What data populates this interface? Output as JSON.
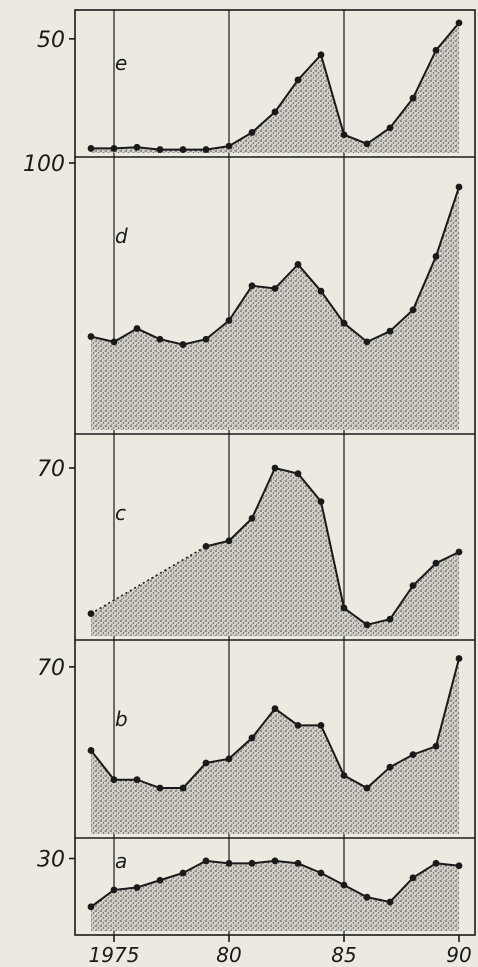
{
  "chart_data": [
    {
      "id": "e",
      "type": "area",
      "panel_label": "e",
      "x": [
        1974,
        1975,
        1976,
        1977,
        1978,
        1979,
        1980,
        1981,
        1982,
        1983,
        1984,
        1985,
        1986,
        1987,
        1988,
        1989,
        1990
      ],
      "values": [
        2,
        2,
        2.5,
        1.5,
        1.5,
        1.5,
        3,
        9,
        18,
        32,
        43,
        8,
        4,
        11,
        24,
        45,
        57
      ],
      "ylim": [
        0,
        60
      ],
      "y_tick_labels": [
        "50"
      ],
      "y_ticks": [
        50
      ],
      "dashed_from_index": null
    },
    {
      "id": "d",
      "type": "area",
      "panel_label": "d",
      "x": [
        1974,
        1975,
        1976,
        1977,
        1978,
        1979,
        1980,
        1981,
        1982,
        1983,
        1984,
        1985,
        1986,
        1987,
        1988,
        1989,
        1990
      ],
      "values": [
        35,
        33,
        38,
        34,
        32,
        34,
        41,
        54,
        53,
        62,
        52,
        40,
        33,
        37,
        45,
        65,
        91
      ],
      "ylim": [
        0,
        100
      ],
      "y_tick_labels": [
        "100"
      ],
      "y_ticks": [
        100
      ],
      "dashed_from_index": null
    },
    {
      "id": "c",
      "type": "area",
      "panel_label": "c",
      "x": [
        1974,
        1979,
        1980,
        1981,
        1982,
        1983,
        1984,
        1985,
        1986,
        1987,
        1988,
        1989,
        1990
      ],
      "values": [
        44,
        56,
        57,
        61,
        70,
        69,
        64,
        45,
        42,
        43,
        49,
        53,
        55
      ],
      "ylim": [
        40,
        75
      ],
      "y_tick_labels": [
        "70"
      ],
      "y_ticks": [
        70
      ],
      "dashed_from_index": 1
    },
    {
      "id": "b",
      "type": "area",
      "panel_label": "b",
      "x": [
        1974,
        1975,
        1976,
        1977,
        1978,
        1979,
        1980,
        1981,
        1982,
        1983,
        1984,
        1985,
        1986,
        1987,
        1988,
        1989,
        1990
      ],
      "values": [
        50,
        43,
        43,
        41,
        41,
        47,
        48,
        53,
        60,
        56,
        56,
        44,
        41,
        46,
        49,
        51,
        72
      ],
      "ylim": [
        30,
        75
      ],
      "y_tick_labels": [
        "70"
      ],
      "y_ticks": [
        70
      ],
      "dashed_from_index": null
    },
    {
      "id": "a",
      "type": "area",
      "panel_label": "a",
      "x": [
        1974,
        1975,
        1976,
        1977,
        1978,
        1979,
        1980,
        1981,
        1982,
        1983,
        1984,
        1985,
        1986,
        1987,
        1988,
        1989,
        1990
      ],
      "values": [
        10,
        17,
        18,
        21,
        24,
        29,
        28,
        28,
        29,
        28,
        24,
        19,
        14,
        12,
        22,
        28,
        27
      ],
      "ylim": [
        0,
        36
      ],
      "y_tick_labels": [
        "30"
      ],
      "y_ticks": [
        30
      ],
      "dashed_from_index": null
    }
  ],
  "x_axis": {
    "min": 1973.5,
    "max": 1990.5,
    "tick_labels": [
      "1975",
      "80",
      "85",
      "90"
    ],
    "tick_values": [
      1975,
      1980,
      1985,
      1990
    ]
  },
  "vertical_gridlines_at": [
    1975,
    1980,
    1985
  ],
  "colors": {
    "ink": "#1a1a1a",
    "paper": "#ece9e1",
    "stipple": "#5a5a5a"
  }
}
